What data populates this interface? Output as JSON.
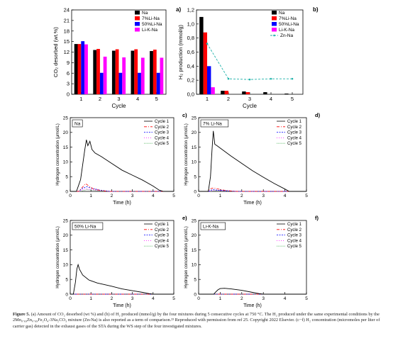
{
  "figure": {
    "caption": {
      "label": "Figure 5.",
      "text": " (a) Amount of CO₂ desorbed (wt %) and (b) of H₂ produced (mmol/g) by the four mixtures during 5 consecutive cycles at 750 °C. The H₂ produced under the same experimental conditions by the 2Mn₀.₆₉Zn₀.₆₉Fe₂O₄-3Na₂CO₃ mixture (Zn-Na) is also reported as a term of comparison.²³ Reproduced with permission from ref 25. Copyright 2022 Elsevier. (c−f) H₂ concentration (micromoles per liter of carrier gas) detected in the exhaust gases of the STA during the WS step of the four investigated mixtures."
    }
  },
  "chart_data": [
    {
      "id": "a",
      "type": "bar",
      "panel_label": "a)",
      "xlabel": "Cycle",
      "ylabel": "CO₂ desorbed (wt.%)",
      "categories": [
        "1",
        "2",
        "3",
        "4",
        "5"
      ],
      "ylim": [
        0,
        24
      ],
      "yticks": [
        0,
        3,
        6,
        9,
        12,
        15,
        18,
        21,
        24
      ],
      "legend_position": "top-right",
      "series": [
        {
          "name": "Na",
          "color": "#000000",
          "values": [
            14.3,
            12.6,
            12.4,
            12.4,
            12.3
          ]
        },
        {
          "name": "7%Li-Na",
          "color": "#ff0000",
          "values": [
            14.3,
            12.9,
            12.8,
            12.8,
            12.7
          ]
        },
        {
          "name": "50%Li-Na",
          "color": "#0000ff",
          "values": [
            15.1,
            6.1,
            6.1,
            6.1,
            6.1
          ]
        },
        {
          "name": "Li-K-Na",
          "color": "#ff00ff",
          "values": [
            14.2,
            10.7,
            10.5,
            10.4,
            10.4
          ]
        }
      ]
    },
    {
      "id": "b",
      "type": "bar",
      "panel_label": "b)",
      "xlabel": "Cycle",
      "ylabel": "H₂ production (mmol/g)",
      "categories": [
        "1",
        "2",
        "3",
        "4",
        "5"
      ],
      "ylim": [
        0,
        1.2
      ],
      "yticks": [
        "0,0",
        "0,2",
        "0,4",
        "0,6",
        "0,8",
        "1,0",
        "1,2"
      ],
      "legend_position": "top-right",
      "series": [
        {
          "name": "Na",
          "color": "#000000",
          "values": [
            1.1,
            0.05,
            0.04,
            0.03,
            0.01
          ]
        },
        {
          "name": "7%Li-Na",
          "color": "#ff0000",
          "values": [
            0.88,
            0.05,
            0.03,
            0.0,
            0.0
          ]
        },
        {
          "name": "50%Li-Na",
          "color": "#0000ff",
          "values": [
            0.4,
            0.0,
            0.0,
            0.0,
            0.0
          ]
        },
        {
          "name": "Li-K-Na",
          "color": "#ff00ff",
          "values": [
            0.1,
            0.0,
            0.0,
            0.0,
            0.0
          ]
        }
      ],
      "line_series": {
        "name": "Zn-Na",
        "color": "#20b2aa",
        "style": "dashed-dot markers",
        "values": [
          0.72,
          0.22,
          0.21,
          0.22,
          0.22
        ]
      }
    },
    {
      "id": "c",
      "type": "line",
      "panel_label": "c)",
      "tag": "Na",
      "xlabel": "Time (h)",
      "ylabel": "Hydrogen concentration (μmol/L)",
      "xlim": [
        0,
        5
      ],
      "ylim": [
        0,
        25
      ],
      "xticks": [
        0,
        1,
        2,
        3,
        4,
        5
      ],
      "yticks": [
        0,
        5,
        10,
        15,
        20,
        25
      ],
      "legend_position": "top-right",
      "series": [
        {
          "name": "Cycle 1",
          "color": "#000000",
          "dash": "",
          "x": [
            0,
            0.3,
            0.5,
            0.6,
            0.7,
            0.78,
            0.85,
            0.95,
            1.05,
            1.2,
            1.5,
            2.0,
            2.5,
            3.0,
            3.5,
            4.0,
            4.3,
            4.5,
            5.0
          ],
          "y": [
            0,
            0,
            4,
            9,
            14,
            17.5,
            15.5,
            17,
            14.2,
            13,
            11.8,
            9.5,
            7.2,
            5.5,
            3.8,
            1.8,
            0.4,
            0,
            0
          ]
        },
        {
          "name": "Cycle 2",
          "color": "#ff0000",
          "dash": "4,2,1,2",
          "x": [
            0,
            0.4,
            0.6,
            0.75,
            0.9,
            1.1,
            1.4,
            1.8,
            5.0
          ],
          "y": [
            0,
            0,
            1.5,
            2.6,
            1.8,
            0.9,
            0.4,
            0,
            0
          ]
        },
        {
          "name": "Cycle 3",
          "color": "#0000ff",
          "dash": "2,1.5",
          "x": [
            0,
            0.4,
            0.6,
            0.8,
            1.0,
            1.4,
            1.9,
            5.0
          ],
          "y": [
            0,
            0,
            1.1,
            1.6,
            1.1,
            0.5,
            0,
            0
          ]
        },
        {
          "name": "Cycle 4",
          "color": "#ff00ff",
          "dash": "1,2",
          "x": [
            0,
            0.45,
            0.7,
            1.0,
            1.4,
            2.0,
            5.0
          ],
          "y": [
            0,
            0,
            0.9,
            0.6,
            0.3,
            0,
            0
          ]
        },
        {
          "name": "Cycle 5",
          "color": "#20a030",
          "dash": "0.7,1.2",
          "x": [
            0,
            0.5,
            0.8,
            1.2,
            2.0,
            5.0
          ],
          "y": [
            0,
            0,
            0.6,
            0.3,
            0,
            0
          ]
        }
      ]
    },
    {
      "id": "d",
      "type": "line",
      "panel_label": "d)",
      "tag": "7% Li-Na",
      "xlabel": "Time (h)",
      "ylabel": "Hydrogen concentration (μmol/L)",
      "xlim": [
        0,
        5
      ],
      "ylim": [
        0,
        25
      ],
      "xticks": [
        0,
        1,
        2,
        3,
        4,
        5
      ],
      "yticks": [
        0,
        5,
        10,
        15,
        20,
        25
      ],
      "legend_position": "top-right",
      "series": [
        {
          "name": "Cycle 1",
          "color": "#000000",
          "dash": "",
          "x": [
            0,
            0.45,
            0.55,
            0.62,
            0.68,
            0.75,
            0.85,
            1.0,
            1.5,
            2.0,
            2.5,
            3.0,
            3.5,
            4.0,
            4.2,
            5.0
          ],
          "y": [
            0,
            0,
            5,
            14,
            20.5,
            16,
            15.5,
            14.7,
            12,
            9.5,
            7,
            4.8,
            2.7,
            0.8,
            0,
            0
          ]
        },
        {
          "name": "Cycle 2",
          "color": "#ff0000",
          "dash": "4,2,1,2",
          "x": [
            0,
            0.4,
            0.55,
            0.7,
            0.9,
            1.2,
            1.7,
            5.0
          ],
          "y": [
            0,
            0,
            0.9,
            1.2,
            0.8,
            0.4,
            0,
            0
          ]
        },
        {
          "name": "Cycle 3",
          "color": "#0000ff",
          "dash": "2,1.5",
          "x": [
            0,
            0.45,
            0.65,
            0.9,
            1.3,
            1.8,
            5.0
          ],
          "y": [
            0,
            0,
            0.6,
            0.4,
            0.2,
            0,
            0
          ]
        },
        {
          "name": "Cycle 4",
          "color": "#ff00ff",
          "dash": "1,2",
          "x": [
            0,
            0.5,
            0.8,
            1.2,
            1.8,
            5.0
          ],
          "y": [
            0,
            0,
            0.4,
            0.25,
            0,
            0
          ]
        },
        {
          "name": "Cycle 5",
          "color": "#20a030",
          "dash": "0.7,1.2",
          "x": [
            0,
            0.5,
            0.9,
            1.4,
            2.0,
            5.0
          ],
          "y": [
            0,
            0,
            0.3,
            0.15,
            0,
            0
          ]
        }
      ]
    },
    {
      "id": "e",
      "type": "line",
      "panel_label": "e)",
      "tag": "50% Li-Na",
      "xlabel": "Time (h)",
      "ylabel": "Hydrogen concentration (μmol/L)",
      "xlim": [
        0,
        5
      ],
      "ylim": [
        0,
        25
      ],
      "xticks": [
        0,
        1,
        2,
        3,
        4,
        5
      ],
      "yticks": [
        0,
        5,
        10,
        15,
        20,
        25
      ],
      "legend_position": "top-right",
      "series": [
        {
          "name": "Cycle 1",
          "color": "#000000",
          "dash": "",
          "x": [
            0,
            0.15,
            0.25,
            0.32,
            0.38,
            0.45,
            0.6,
            0.9,
            1.3,
            2.0,
            2.5,
            3.0,
            3.5,
            3.8,
            4.0,
            5.0
          ],
          "y": [
            0,
            0,
            4,
            8.5,
            10,
            8.4,
            6.5,
            4.8,
            3.8,
            2.7,
            1.8,
            1.2,
            0.6,
            0.2,
            0,
            0
          ]
        },
        {
          "name": "Cycle 2",
          "color": "#ff0000",
          "dash": "4,2,1,2",
          "x": [
            0,
            5.0
          ],
          "y": [
            0,
            0
          ]
        },
        {
          "name": "Cycle 3",
          "color": "#0000ff",
          "dash": "2,1.5",
          "x": [
            0,
            5.0
          ],
          "y": [
            0,
            0
          ]
        },
        {
          "name": "Cycle 4",
          "color": "#ff00ff",
          "dash": "1,2",
          "x": [
            0,
            5.0
          ],
          "y": [
            0,
            0
          ]
        },
        {
          "name": "Cycle 5",
          "color": "#20a030",
          "dash": "0.7,1.2",
          "x": [
            0,
            5.0
          ],
          "y": [
            0,
            0
          ]
        }
      ]
    },
    {
      "id": "f",
      "type": "line",
      "panel_label": "f)",
      "tag": "Li-K-Na",
      "xlabel": "Time (h)",
      "ylabel": "Hydrogen concentration (μmol/L)",
      "xlim": [
        0,
        5
      ],
      "ylim": [
        0,
        25
      ],
      "xticks": [
        0,
        1,
        2,
        3,
        4,
        5
      ],
      "yticks": [
        0,
        5,
        10,
        15,
        20,
        25
      ],
      "legend_position": "top-right",
      "series": [
        {
          "name": "Cycle 1",
          "color": "#000000",
          "dash": "",
          "x": [
            0,
            0.7,
            0.8,
            0.9,
            1.0,
            1.2,
            1.5,
            2.0,
            2.5,
            2.8,
            3.0,
            5.0
          ],
          "y": [
            0,
            0,
            0.8,
            1.5,
            1.9,
            2.0,
            1.8,
            1.3,
            0.6,
            0.2,
            0,
            0
          ]
        },
        {
          "name": "Cycle 2",
          "color": "#ff0000",
          "dash": "4,2,1,2",
          "x": [
            0,
            5.0
          ],
          "y": [
            0,
            0
          ]
        },
        {
          "name": "Cycle 3",
          "color": "#0000ff",
          "dash": "2,1.5",
          "x": [
            0,
            5.0
          ],
          "y": [
            0,
            0
          ]
        },
        {
          "name": "Cycle 4",
          "color": "#ff00ff",
          "dash": "1,2",
          "x": [
            0,
            5.0
          ],
          "y": [
            0,
            0
          ]
        },
        {
          "name": "Cycle 5",
          "color": "#20a030",
          "dash": "0.7,1.2",
          "x": [
            0,
            5.0
          ],
          "y": [
            0,
            0
          ]
        }
      ]
    }
  ]
}
